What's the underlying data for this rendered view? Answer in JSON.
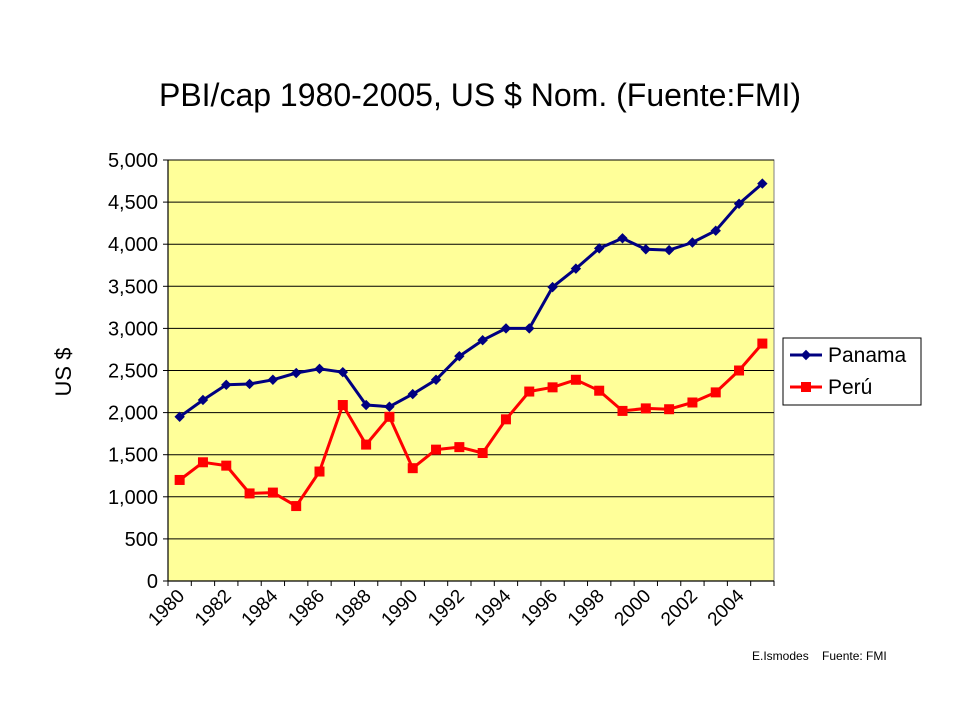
{
  "chart_data": {
    "type": "line",
    "title": "PBI/cap 1980-2005, US $ Nom. (Fuente:FMI)",
    "ylabel": "US $",
    "xlabel": "",
    "ylim": [
      0,
      5000
    ],
    "yticks": [
      "0",
      "500",
      "1,000",
      "1,500",
      "2,000",
      "2,500",
      "3,000",
      "3,500",
      "4,000",
      "4,500",
      "5,000"
    ],
    "xtick_labels": [
      "1980",
      "1982",
      "1984",
      "1986",
      "1988",
      "1990",
      "1992",
      "1994",
      "1996",
      "1998",
      "2000",
      "2002",
      "2004"
    ],
    "x": [
      1980,
      1981,
      1982,
      1983,
      1984,
      1985,
      1986,
      1987,
      1988,
      1989,
      1990,
      1991,
      1992,
      1993,
      1994,
      1995,
      1996,
      1997,
      1998,
      1999,
      2000,
      2001,
      2002,
      2003,
      2004,
      2005
    ],
    "grid": true,
    "legend_position": "right",
    "series": [
      {
        "name": "Panama",
        "color": "#000080",
        "marker": "diamond",
        "values": [
          1950,
          2150,
          2330,
          2340,
          2390,
          2470,
          2520,
          2480,
          2090,
          2070,
          2220,
          2390,
          2670,
          2860,
          3000,
          3000,
          3490,
          3710,
          3950,
          4070,
          3940,
          3930,
          4020,
          4160,
          4480,
          4720
        ]
      },
      {
        "name": "Perú",
        "color": "#ff0000",
        "marker": "square",
        "values": [
          1200,
          1410,
          1370,
          1040,
          1050,
          890,
          1300,
          2090,
          1620,
          1950,
          1340,
          1560,
          1590,
          1520,
          1920,
          2250,
          2300,
          2390,
          2260,
          2020,
          2050,
          2040,
          2120,
          2240,
          2500,
          2820
        ]
      }
    ],
    "plot_background": "#ffff99",
    "credit": "E.Ismodes    Fuente: FMI"
  }
}
